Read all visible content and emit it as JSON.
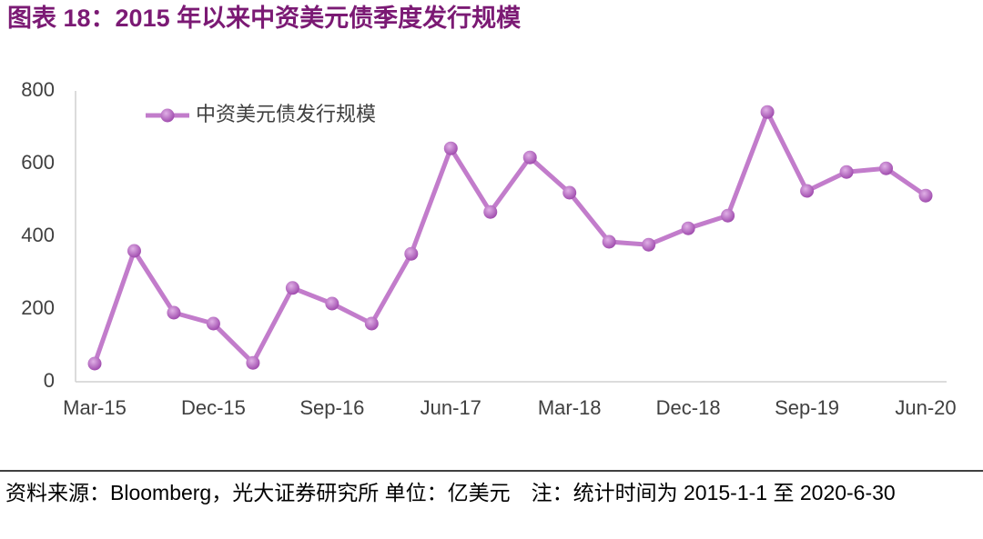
{
  "chart_data": {
    "type": "line",
    "title": "图表 18：2015 年以来中资美元债季度发行规模",
    "note": "资料来源：Bloomberg，光大证券研究所 单位：亿美元　注：统计时间为 2015-1-1 至 2020-6-30",
    "categories": [
      "Mar-15",
      null,
      null,
      "Dec-15",
      null,
      null,
      "Sep-16",
      null,
      null,
      "Jun-17",
      null,
      null,
      "Mar-18",
      null,
      null,
      "Dec-18",
      null,
      null,
      "Sep-19",
      null,
      null,
      "Jun-20"
    ],
    "series": [
      {
        "name": "中资美元债发行规模",
        "color": "#c27ccb",
        "values": [
          50,
          360,
          190,
          160,
          52,
          258,
          215,
          160,
          352,
          642,
          467,
          617,
          520,
          385,
          377,
          422,
          457,
          742,
          525,
          577,
          587,
          512
        ]
      }
    ],
    "ylim": [
      0,
      800
    ],
    "yticks": [
      0,
      200,
      400,
      600,
      800
    ],
    "grid": false,
    "legend": "top-left"
  }
}
